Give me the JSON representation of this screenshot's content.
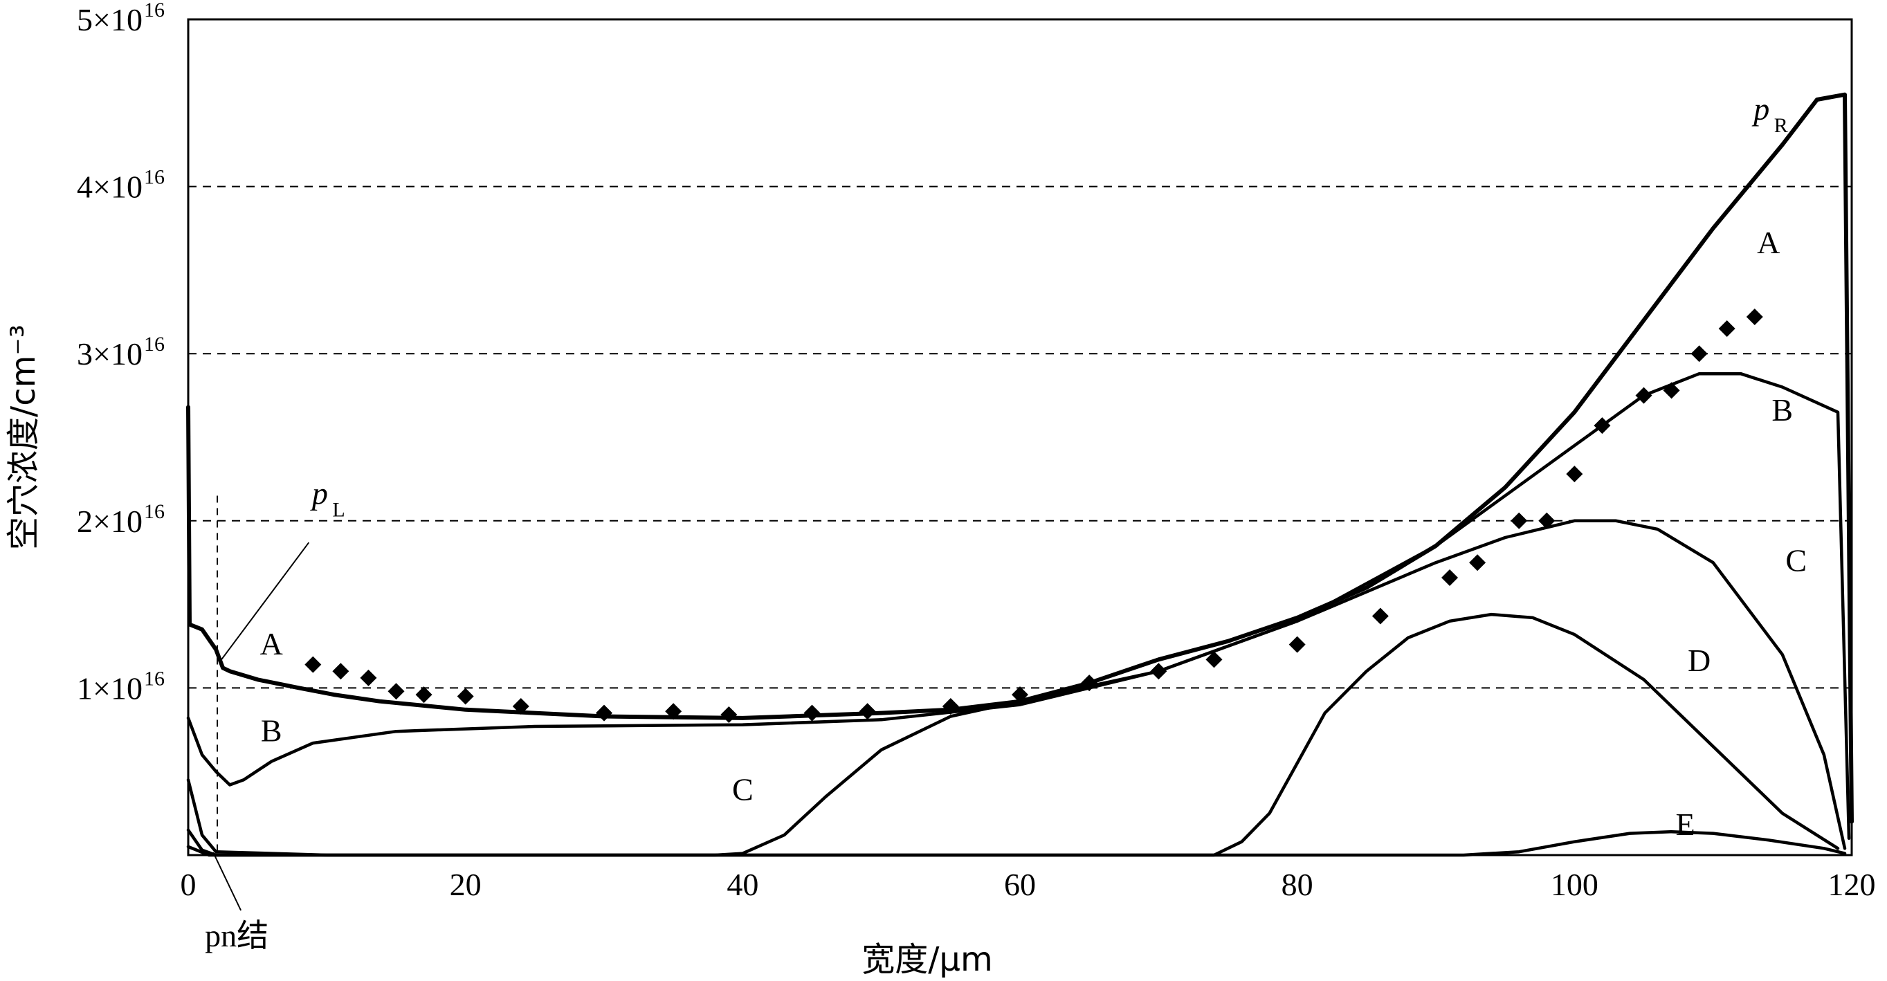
{
  "chart_data": {
    "type": "line",
    "xlabel": "宽度/μm",
    "ylabel": "空穴浓度/cm⁻³",
    "xlim": [
      0,
      120
    ],
    "ylim": [
      0,
      50000000000000000
    ],
    "x_ticks": [
      "0",
      "20",
      "40",
      "60",
      "80",
      "100",
      "120"
    ],
    "y_ticks": [
      {
        "value": 10000000000000000,
        "mantissa": "1×10",
        "exp": "16"
      },
      {
        "value": 20000000000000000,
        "mantissa": "2×10",
        "exp": "16"
      },
      {
        "value": 30000000000000000,
        "mantissa": "3×10",
        "exp": "16"
      },
      {
        "value": 40000000000000000,
        "mantissa": "4×10",
        "exp": "16"
      },
      {
        "value": 50000000000000000,
        "mantissa": "5×10",
        "exp": "16"
      }
    ],
    "grid": {
      "horizontal_dashed_at": [
        10000000000000000,
        20000000000000000,
        30000000000000000,
        40000000000000000
      ]
    },
    "pn_junction": {
      "x": 2.1,
      "label": "pn结"
    },
    "annotations": [
      {
        "text": "p",
        "sub": "L",
        "at": [
          9.5,
          21000000000000000
        ]
      },
      {
        "text": "p",
        "sub": "R",
        "at": [
          113.5,
          44000000000000000
        ]
      }
    ],
    "series": [
      {
        "name": "A",
        "label_at": [
          6,
          12000000000000000
        ],
        "points": [
          [
            0,
            26800000000000000
          ],
          [
            0.1,
            13800000000000000
          ],
          [
            1,
            13500000000000000
          ],
          [
            2,
            12300000000000000
          ],
          [
            2.5,
            11200000000000000
          ],
          [
            3,
            11000000000000000
          ],
          [
            5,
            10500000000000000
          ],
          [
            8,
            10000000000000000
          ],
          [
            10.5,
            9600000000000000
          ],
          [
            13.8,
            9200000000000000
          ],
          [
            20,
            8700000000000000
          ],
          [
            30,
            8300000000000000
          ],
          [
            40,
            8200000000000000
          ],
          [
            50,
            8500000000000000
          ],
          [
            55,
            8700000000000000
          ],
          [
            60,
            9200000000000000
          ],
          [
            65,
            10300000000000000
          ],
          [
            70,
            11700000000000000
          ],
          [
            75,
            12800000000000000
          ],
          [
            80,
            14200000000000000
          ],
          [
            85,
            16000000000000000
          ],
          [
            90,
            18500000000000000
          ],
          [
            95,
            22000000000000000
          ],
          [
            100,
            26500000000000000
          ],
          [
            105,
            32000000000000000
          ],
          [
            110,
            37500000000000000
          ],
          [
            115,
            42500000000000000
          ],
          [
            117.5,
            45200000000000000
          ],
          [
            119.5,
            45500000000000000
          ],
          [
            120,
            2000000000000000
          ]
        ]
      },
      {
        "name": "B",
        "label_at": [
          6,
          6800000000000000
        ],
        "points": [
          [
            0,
            8200000000000000
          ],
          [
            1,
            6000000000000000
          ],
          [
            2,
            5000000000000000
          ],
          [
            3,
            4200000000000000
          ],
          [
            4,
            4500000000000000
          ],
          [
            6,
            5600000000000000
          ],
          [
            9,
            6700000000000000
          ],
          [
            15,
            7400000000000000
          ],
          [
            25,
            7700000000000000
          ],
          [
            40,
            7800000000000000
          ],
          [
            50,
            8100000000000000
          ],
          [
            60,
            9000000000000000
          ],
          [
            70,
            11000000000000000
          ],
          [
            80,
            14000000000000000
          ],
          [
            90,
            18500000000000000
          ],
          [
            100,
            24500000000000000
          ],
          [
            105,
            27500000000000000
          ],
          [
            109,
            28800000000000000
          ],
          [
            112,
            28800000000000000
          ],
          [
            115,
            28000000000000000
          ],
          [
            119,
            26500000000000000
          ],
          [
            119.8,
            1000000000000000
          ]
        ]
      },
      {
        "name": "C",
        "label_at": [
          40,
          3300000000000000
        ],
        "points": [
          [
            0,
            4500000000000000
          ],
          [
            1,
            1200000000000000
          ],
          [
            2,
            200000000000000
          ],
          [
            10,
            0
          ],
          [
            38,
            0
          ],
          [
            40,
            100000000000000
          ],
          [
            43,
            1200000000000000
          ],
          [
            46,
            3500000000000000
          ],
          [
            50,
            6300000000000000
          ],
          [
            55,
            8300000000000000
          ],
          [
            60,
            9200000000000000
          ],
          [
            70,
            11000000000000000
          ],
          [
            80,
            14000000000000000
          ],
          [
            90,
            17500000000000000
          ],
          [
            95,
            19000000000000000
          ],
          [
            100,
            20000000000000000
          ],
          [
            103,
            20000000000000000
          ],
          [
            106,
            19500000000000000
          ],
          [
            110,
            17500000000000000
          ],
          [
            115,
            12000000000000000
          ],
          [
            118,
            6000000000000000
          ],
          [
            119.5,
            400000000000000
          ]
        ]
      },
      {
        "name": "D",
        "label_at": [
          109,
          11000000000000000
        ],
        "points": [
          [
            0,
            1500000000000000
          ],
          [
            1,
            300000000000000
          ],
          [
            2,
            0
          ],
          [
            74,
            0
          ],
          [
            76,
            800000000000000
          ],
          [
            78,
            2500000000000000
          ],
          [
            80,
            5500000000000000
          ],
          [
            82,
            8500000000000000
          ],
          [
            85,
            11000000000000000
          ],
          [
            88,
            13000000000000000
          ],
          [
            91,
            14000000000000000
          ],
          [
            94,
            14400000000000000
          ],
          [
            97,
            14200000000000000
          ],
          [
            100,
            13200000000000000
          ],
          [
            105,
            10500000000000000
          ],
          [
            110,
            6500000000000000
          ],
          [
            115,
            2500000000000000
          ],
          [
            119,
            400000000000000
          ]
        ]
      },
      {
        "name": "E",
        "label_at": [
          108,
          1200000000000000
        ],
        "points": [
          [
            0,
            500000000000000
          ],
          [
            1.5,
            0
          ],
          [
            92,
            0
          ],
          [
            96,
            200000000000000
          ],
          [
            100,
            800000000000000
          ],
          [
            104,
            1300000000000000
          ],
          [
            107,
            1400000000000000
          ],
          [
            110,
            1300000000000000
          ],
          [
            114,
            900000000000000
          ],
          [
            118,
            400000000000000
          ],
          [
            119.5,
            100000000000000
          ]
        ]
      },
      {
        "name": "",
        "style": "diamond-markers",
        "points": [
          [
            9,
            11400000000000000
          ],
          [
            11,
            11000000000000000
          ],
          [
            13,
            10600000000000000
          ],
          [
            15,
            9800000000000000
          ],
          [
            17,
            9600000000000000
          ],
          [
            20,
            9500000000000000
          ],
          [
            24,
            8900000000000000
          ],
          [
            30,
            8500000000000000
          ],
          [
            35,
            8600000000000000
          ],
          [
            39,
            8400000000000000
          ],
          [
            45,
            8500000000000000
          ],
          [
            49,
            8600000000000000
          ],
          [
            55,
            8900000000000000
          ],
          [
            60,
            9600000000000000
          ],
          [
            65,
            10300000000000000
          ],
          [
            70,
            11000000000000000
          ],
          [
            74,
            11700000000000000
          ],
          [
            80,
            12600000000000000
          ],
          [
            86,
            14300000000000000
          ],
          [
            91,
            16600000000000000
          ],
          [
            93,
            17500000000000000
          ],
          [
            96,
            20000000000000000
          ],
          [
            98,
            20000000000000000
          ],
          [
            100,
            22800000000000000
          ],
          [
            102,
            25700000000000000
          ],
          [
            105,
            27500000000000000
          ],
          [
            107,
            27800000000000000
          ],
          [
            109,
            30000000000000000
          ],
          [
            111,
            31500000000000000
          ],
          [
            113,
            32200000000000000
          ]
        ]
      }
    ]
  }
}
